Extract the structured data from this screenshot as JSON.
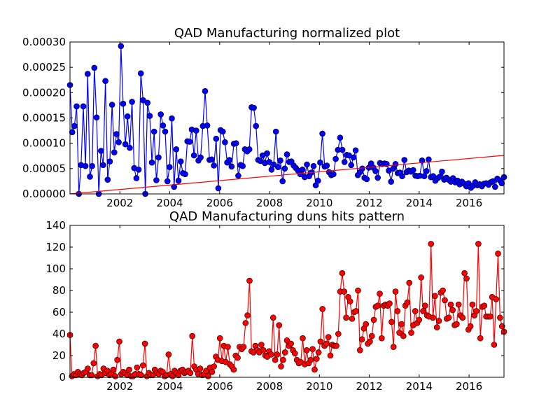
{
  "chart_data": [
    {
      "type": "line",
      "title": "QAD Manufacturing normalized plot",
      "xlabel": "",
      "ylabel": "",
      "xlim": [
        2000.0,
        2017.4
      ],
      "ylim": [
        0,
        0.0003
      ],
      "x_ticks": [
        2002,
        2004,
        2006,
        2008,
        2010,
        2012,
        2014,
        2016
      ],
      "y_ticks": [
        "0.00000",
        "0.00005",
        "0.00010",
        "0.00015",
        "0.00020",
        "0.00025",
        "0.00030"
      ],
      "y_tick_values": [
        0,
        5e-05,
        0.0001,
        0.00015,
        0.0002,
        0.00025,
        0.0003
      ],
      "grid": false,
      "series": [
        {
          "color": "#0000ff",
          "marker": "circle",
          "values": [
            0.000215,
            0.000122,
            0.000134,
            0.000173,
            0.0,
            5.7e-05,
            0.000173,
            5.5e-05,
            0.000237,
            3.4e-05,
            5.5e-05,
            0.000249,
            0.000151,
            0.0,
            8.5e-05,
            5.7e-05,
            0.000223,
            2.8e-05,
            6.4e-05,
            0.000176,
            8.2e-05,
            0.000118,
            0.000102,
            0.000292,
            0.000178,
            9.8e-05,
            0.000153,
            9.1e-05,
            0.000182,
            5.1e-05,
            3.1e-05,
            4.8e-05,
            0.000238,
            0.000185,
            0.0,
            0.00018,
            0.000154,
            6.2e-05,
            0.000123,
            2.7e-05,
            7.2e-05,
            0.000157,
            0.000135,
            0.000123,
            2.5e-05,
            5.3e-05,
            0.000149,
            1.4e-05,
            8.8e-05,
            2.6e-05,
            6.4e-05,
            4.1e-05,
            3.9e-05,
            0.000104,
            0.000103,
            0.000127,
            7.6e-05,
            0.000125,
            6.6e-05,
            7.2e-05,
            0.000134,
            0.000203,
            0.000135,
            6.7e-05,
            6.8e-05,
            5.6e-05,
            0.000109,
            1.1e-05,
            0.000126,
            0.000123,
            0.000102,
            6.2e-05,
            6.7e-05,
            5.4e-05,
            9.9e-05,
            0.0001,
            3.6e-05,
            5.7e-05,
            5.5e-05,
            8.8e-05,
            8.4e-05,
            8.8e-05,
            0.000171,
            0.00017,
            0.000134,
            6.7e-05,
            6.5e-05,
            7.6e-05,
            6.1e-05,
            8e-05,
            6.3e-05,
            4.8e-05,
            5.8e-05,
            0.000123,
            5.3e-05,
            6.6e-05,
            2.5e-05,
            5e-05,
            7.8e-05,
            6.3e-05,
            6.4e-05,
            5.6e-05,
            5.1e-05,
            4.6e-05,
            3.9e-05,
            4.8e-05,
            3.3e-05,
            5.8e-05,
            3.5e-05,
            4.2e-05,
            5.5e-05,
            1.7e-05,
            2.6e-05,
            6.2e-05,
            0.000119,
            5.4e-05,
            5.6e-05,
            4.3e-05,
            3.7e-05,
            3.9e-05,
            6.9e-05,
            8.7e-05,
            0.000111,
            8.7e-05,
            6.3e-05,
            7.7e-05,
            7.6e-05,
            5.7e-05,
            7.2e-05,
            8.6e-05,
            3.7e-05,
            4.3e-05,
            5e-05,
            3.2e-05,
            2.9e-05,
            5.2e-05,
            6e-05,
            5.2e-05,
            4.5e-05,
            3.2e-05,
            6.1e-05,
            5.9e-05,
            6e-05,
            5.9e-05,
            4.6e-05,
            2.4e-05,
            5e-05,
            5.9e-05,
            4.1e-05,
            4.2e-05,
            3.5e-05,
            6.7e-05,
            4.3e-05,
            4.6e-05,
            4.4e-05,
            4.7e-05,
            3.6e-05,
            3.5e-05,
            3.6e-05,
            6.6e-05,
            3.5e-05,
            4.5e-05,
            6.8e-05,
            3.3e-05,
            3.5e-05,
            2.6e-05,
            3.1e-05,
            3.4e-05,
            4.4e-05,
            2.8e-05,
            3.2e-05,
            2.8e-05,
            2.4e-05,
            3.1e-05,
            2.3e-05,
            2.6e-05,
            1.9e-05,
            2.4e-05,
            2e-05,
            1.5e-05,
            2.1e-05,
            1.2e-05,
            1.6e-05,
            2.3e-05,
            1.7e-05,
            1.9e-05,
            1.5e-05,
            2e-05,
            2.1e-05,
            1.8e-05,
            2.3e-05,
            2.5e-05,
            1.4e-05,
            3e-05,
            2.7e-05,
            2.1e-05,
            3.3e-05
          ]
        },
        {
          "color": "#ff0000",
          "marker": "none",
          "x": [
            2000.0,
            2017.4
          ],
          "values": [
            0.0,
            7.6e-05
          ]
        }
      ]
    },
    {
      "type": "line",
      "title": "QAD Manufacturing duns hits pattern",
      "xlabel": "",
      "ylabel": "",
      "xlim": [
        2000.0,
        2017.4
      ],
      "ylim": [
        0,
        140
      ],
      "x_ticks": [
        2002,
        2004,
        2006,
        2008,
        2010,
        2012,
        2014,
        2016
      ],
      "y_ticks": [
        "0",
        "20",
        "40",
        "60",
        "80",
        "100",
        "120",
        "140"
      ],
      "y_tick_values": [
        0,
        20,
        40,
        60,
        80,
        100,
        120,
        140
      ],
      "grid": false,
      "series": [
        {
          "color": "#ff0000",
          "marker": "circle",
          "values": [
            39,
            1,
            3,
            2,
            5,
            3,
            2,
            4,
            5,
            8,
            2,
            2,
            13,
            29,
            1,
            3,
            2,
            8,
            4,
            6,
            2,
            3,
            7,
            1,
            16,
            33,
            3,
            5,
            4,
            2,
            7,
            1,
            1,
            3,
            9,
            3,
            2,
            11,
            31,
            1,
            4,
            2,
            2,
            7,
            4,
            3,
            6,
            5,
            1,
            2,
            21,
            3,
            1,
            6,
            4,
            2,
            6,
            7,
            4,
            5,
            6,
            4,
            38,
            10,
            7,
            3,
            8,
            2,
            3,
            6,
            1,
            9,
            5,
            10,
            19,
            16,
            36,
            15,
            29,
            14,
            28,
            12,
            10,
            7,
            20,
            18,
            28,
            26,
            28,
            50,
            57,
            89,
            24,
            23,
            29,
            25,
            23,
            30,
            25,
            20,
            19,
            24,
            21,
            55,
            16,
            21,
            48,
            10,
            16,
            23,
            34,
            29,
            31,
            25,
            22,
            16,
            13,
            14,
            36,
            12,
            25,
            13,
            16,
            26,
            7,
            17,
            23,
            33,
            63,
            29,
            31,
            37,
            20,
            30,
            29,
            29,
            40,
            79,
            96,
            79,
            55,
            74,
            70,
            54,
            60,
            61,
            80,
            25,
            35,
            45,
            49,
            31,
            33,
            38,
            53,
            65,
            66,
            77,
            36,
            66,
            67,
            66,
            68,
            51,
            28,
            79,
            61,
            41,
            49,
            38,
            66,
            69,
            87,
            41,
            48,
            61,
            50,
            53,
            92,
            61,
            66,
            57,
            56,
            123,
            55,
            75,
            46,
            52,
            78,
            80,
            71,
            54,
            55,
            67,
            62,
            48,
            49,
            67,
            57,
            55,
            96,
            91,
            44,
            47,
            67,
            57,
            61,
            123,
            36,
            65,
            66,
            56,
            56,
            56,
            74,
            30,
            72,
            114,
            55,
            47,
            42
          ]
        }
      ]
    }
  ]
}
